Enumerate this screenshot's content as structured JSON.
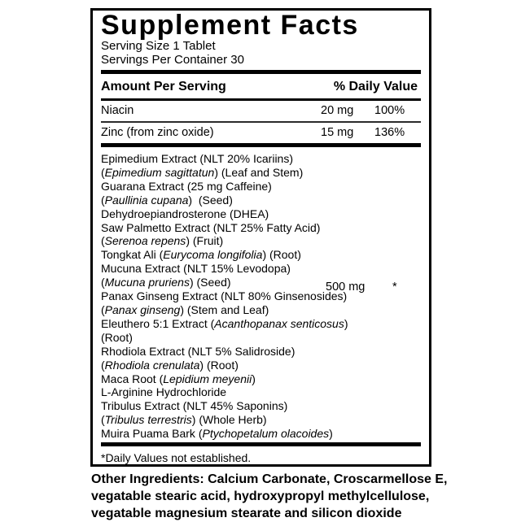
{
  "colors": {
    "text": "#000000",
    "background": "#ffffff",
    "rule": "#000000"
  },
  "panel": {
    "title": "Supplement Facts",
    "serving_size": "Serving Size 1 Tablet",
    "servings_per_container": "Servings Per Container 30",
    "table": {
      "header_left": "Amount Per Serving",
      "header_right": "% Daily Value",
      "rows": [
        {
          "name": "Niacin",
          "amount": "20 mg",
          "dv": "100%"
        },
        {
          "name": "Zinc (from zinc oxide)",
          "amount": "15 mg",
          "dv": "136%"
        }
      ]
    },
    "blend": {
      "amount": "500 mg",
      "dv": "*",
      "lines": [
        [
          {
            "t": "Epimedium Extract (NLT 20% Icariins)",
            "i": false
          }
        ],
        [
          {
            "t": "(",
            "i": false
          },
          {
            "t": "Epimedium sagittatun",
            "i": true
          },
          {
            "t": ") (Leaf and Stem)",
            "i": false
          }
        ],
        [
          {
            "t": "Guarana Extract (25 mg Caffeine)",
            "i": false
          }
        ],
        [
          {
            "t": "(",
            "i": false
          },
          {
            "t": "Paullinia cupana",
            "i": true
          },
          {
            "t": ")  (Seed)",
            "i": false
          }
        ],
        [
          {
            "t": "Dehydroepiandrosterone (DHEA)",
            "i": false
          }
        ],
        [
          {
            "t": "Saw Palmetto Extract (NLT 25% Fatty Acid)",
            "i": false
          }
        ],
        [
          {
            "t": "(",
            "i": false
          },
          {
            "t": "Serenoa repens",
            "i": true
          },
          {
            "t": ") (Fruit)",
            "i": false
          }
        ],
        [
          {
            "t": "Tongkat Ali (",
            "i": false
          },
          {
            "t": "Eurycoma longifolia",
            "i": true
          },
          {
            "t": ") (Root)",
            "i": false
          }
        ],
        [
          {
            "t": "Mucuna Extract (NLT 15% Levodopa)",
            "i": false
          }
        ],
        [
          {
            "t": "(",
            "i": false
          },
          {
            "t": "Mucuna pruriens",
            "i": true
          },
          {
            "t": ") (Seed)",
            "i": false
          }
        ],
        [
          {
            "t": "Panax Ginseng Extract (NLT 80% Ginsenosides)",
            "i": false
          }
        ],
        [
          {
            "t": "(",
            "i": false
          },
          {
            "t": "Panax ginseng",
            "i": true
          },
          {
            "t": ") (Stem and Leaf)",
            "i": false
          }
        ],
        [
          {
            "t": "Eleuthero 5:1 Extract (",
            "i": false
          },
          {
            "t": "Acanthopanax senticosus",
            "i": true
          },
          {
            "t": ")",
            "i": false
          }
        ],
        [
          {
            "t": "(Root)",
            "i": false
          }
        ],
        [
          {
            "t": "Rhodiola Extract (NLT 5% Salidroside)",
            "i": false
          }
        ],
        [
          {
            "t": "(",
            "i": false
          },
          {
            "t": "Rhodiola crenulata",
            "i": true
          },
          {
            "t": ") (Root)",
            "i": false
          }
        ],
        [
          {
            "t": "Maca Root (",
            "i": false
          },
          {
            "t": "Lepidium meyenii",
            "i": true
          },
          {
            "t": ")",
            "i": false
          }
        ],
        [
          {
            "t": "L-Arginine Hydrochloride",
            "i": false
          }
        ],
        [
          {
            "t": "Tribulus Extract (NLT 45% Saponins)",
            "i": false
          }
        ],
        [
          {
            "t": "(",
            "i": false
          },
          {
            "t": "Tribulus terrestris",
            "i": true
          },
          {
            "t": ") (Whole Herb)",
            "i": false
          }
        ],
        [
          {
            "t": "Muira Puama Bark (",
            "i": false
          },
          {
            "t": "Ptychopetalum olacoides",
            "i": true
          },
          {
            "t": ")",
            "i": false
          }
        ]
      ]
    },
    "footnote": "*Daily Values not established.",
    "other_ingredients": "Other Ingredients: Calcium Carbonate, Croscarmellose E, vegatable stearic acid, hydroxypropyl methylcellulose, vegatable magnesium stearate and silicon dioxide"
  }
}
